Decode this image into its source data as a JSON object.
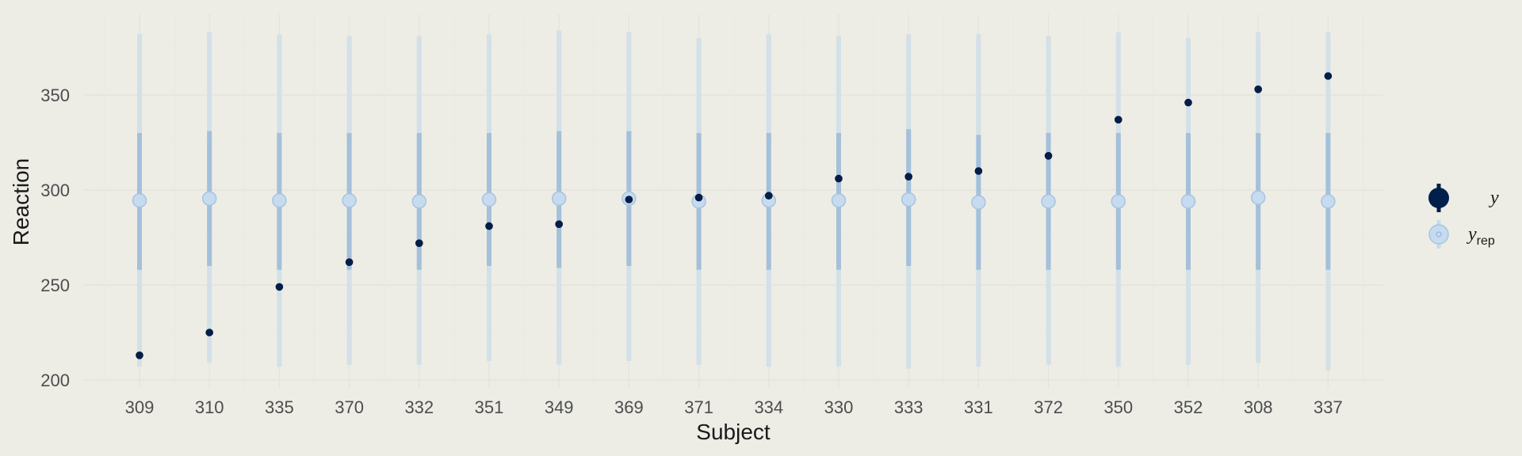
{
  "chart_data": {
    "type": "scatter",
    "xlabel": "Subject",
    "ylabel": "Reaction",
    "ylim": [
      197,
      388
    ],
    "yticks": [
      200,
      250,
      300,
      350
    ],
    "grid": true,
    "legend_position": "right",
    "categories": [
      "309",
      "310",
      "335",
      "370",
      "332",
      "351",
      "349",
      "369",
      "371",
      "334",
      "330",
      "333",
      "331",
      "372",
      "350",
      "352",
      "308",
      "337"
    ],
    "series": [
      {
        "name": "y",
        "kind": "point",
        "color": "#011f4b",
        "values": [
          213,
          225,
          249,
          262,
          272,
          281,
          282,
          295,
          296,
          297,
          306,
          307,
          310,
          318,
          337,
          346,
          353,
          360
        ]
      },
      {
        "name": "y_rep",
        "kind": "pointrange",
        "color": "#c6dbef",
        "median": [
          294.5,
          295.5,
          294.5,
          294.5,
          294,
          295,
          295.5,
          295.5,
          294,
          294.5,
          294.5,
          295,
          293.5,
          294,
          294,
          294,
          296,
          294
        ],
        "inner_low": [
          258,
          260,
          258,
          258,
          258,
          260,
          259,
          260,
          258,
          258,
          258,
          260,
          258,
          258,
          258,
          258,
          258,
          258
        ],
        "inner_high": [
          330,
          331,
          330,
          330,
          330,
          330,
          331,
          331,
          330,
          330,
          330,
          332,
          329,
          330,
          330,
          330,
          330,
          330
        ],
        "outer_low": [
          207,
          209,
          207,
          208,
          208,
          210,
          208,
          210,
          208,
          207,
          207,
          206,
          207,
          208,
          207,
          208,
          209,
          205
        ],
        "outer_high": [
          382,
          383,
          382,
          381,
          381,
          382,
          384,
          383,
          380,
          382,
          381,
          382,
          382,
          381,
          383,
          380,
          383,
          383
        ]
      }
    ],
    "legend": [
      {
        "label": "y",
        "sub": ""
      },
      {
        "label": "y",
        "sub": "rep"
      }
    ]
  }
}
